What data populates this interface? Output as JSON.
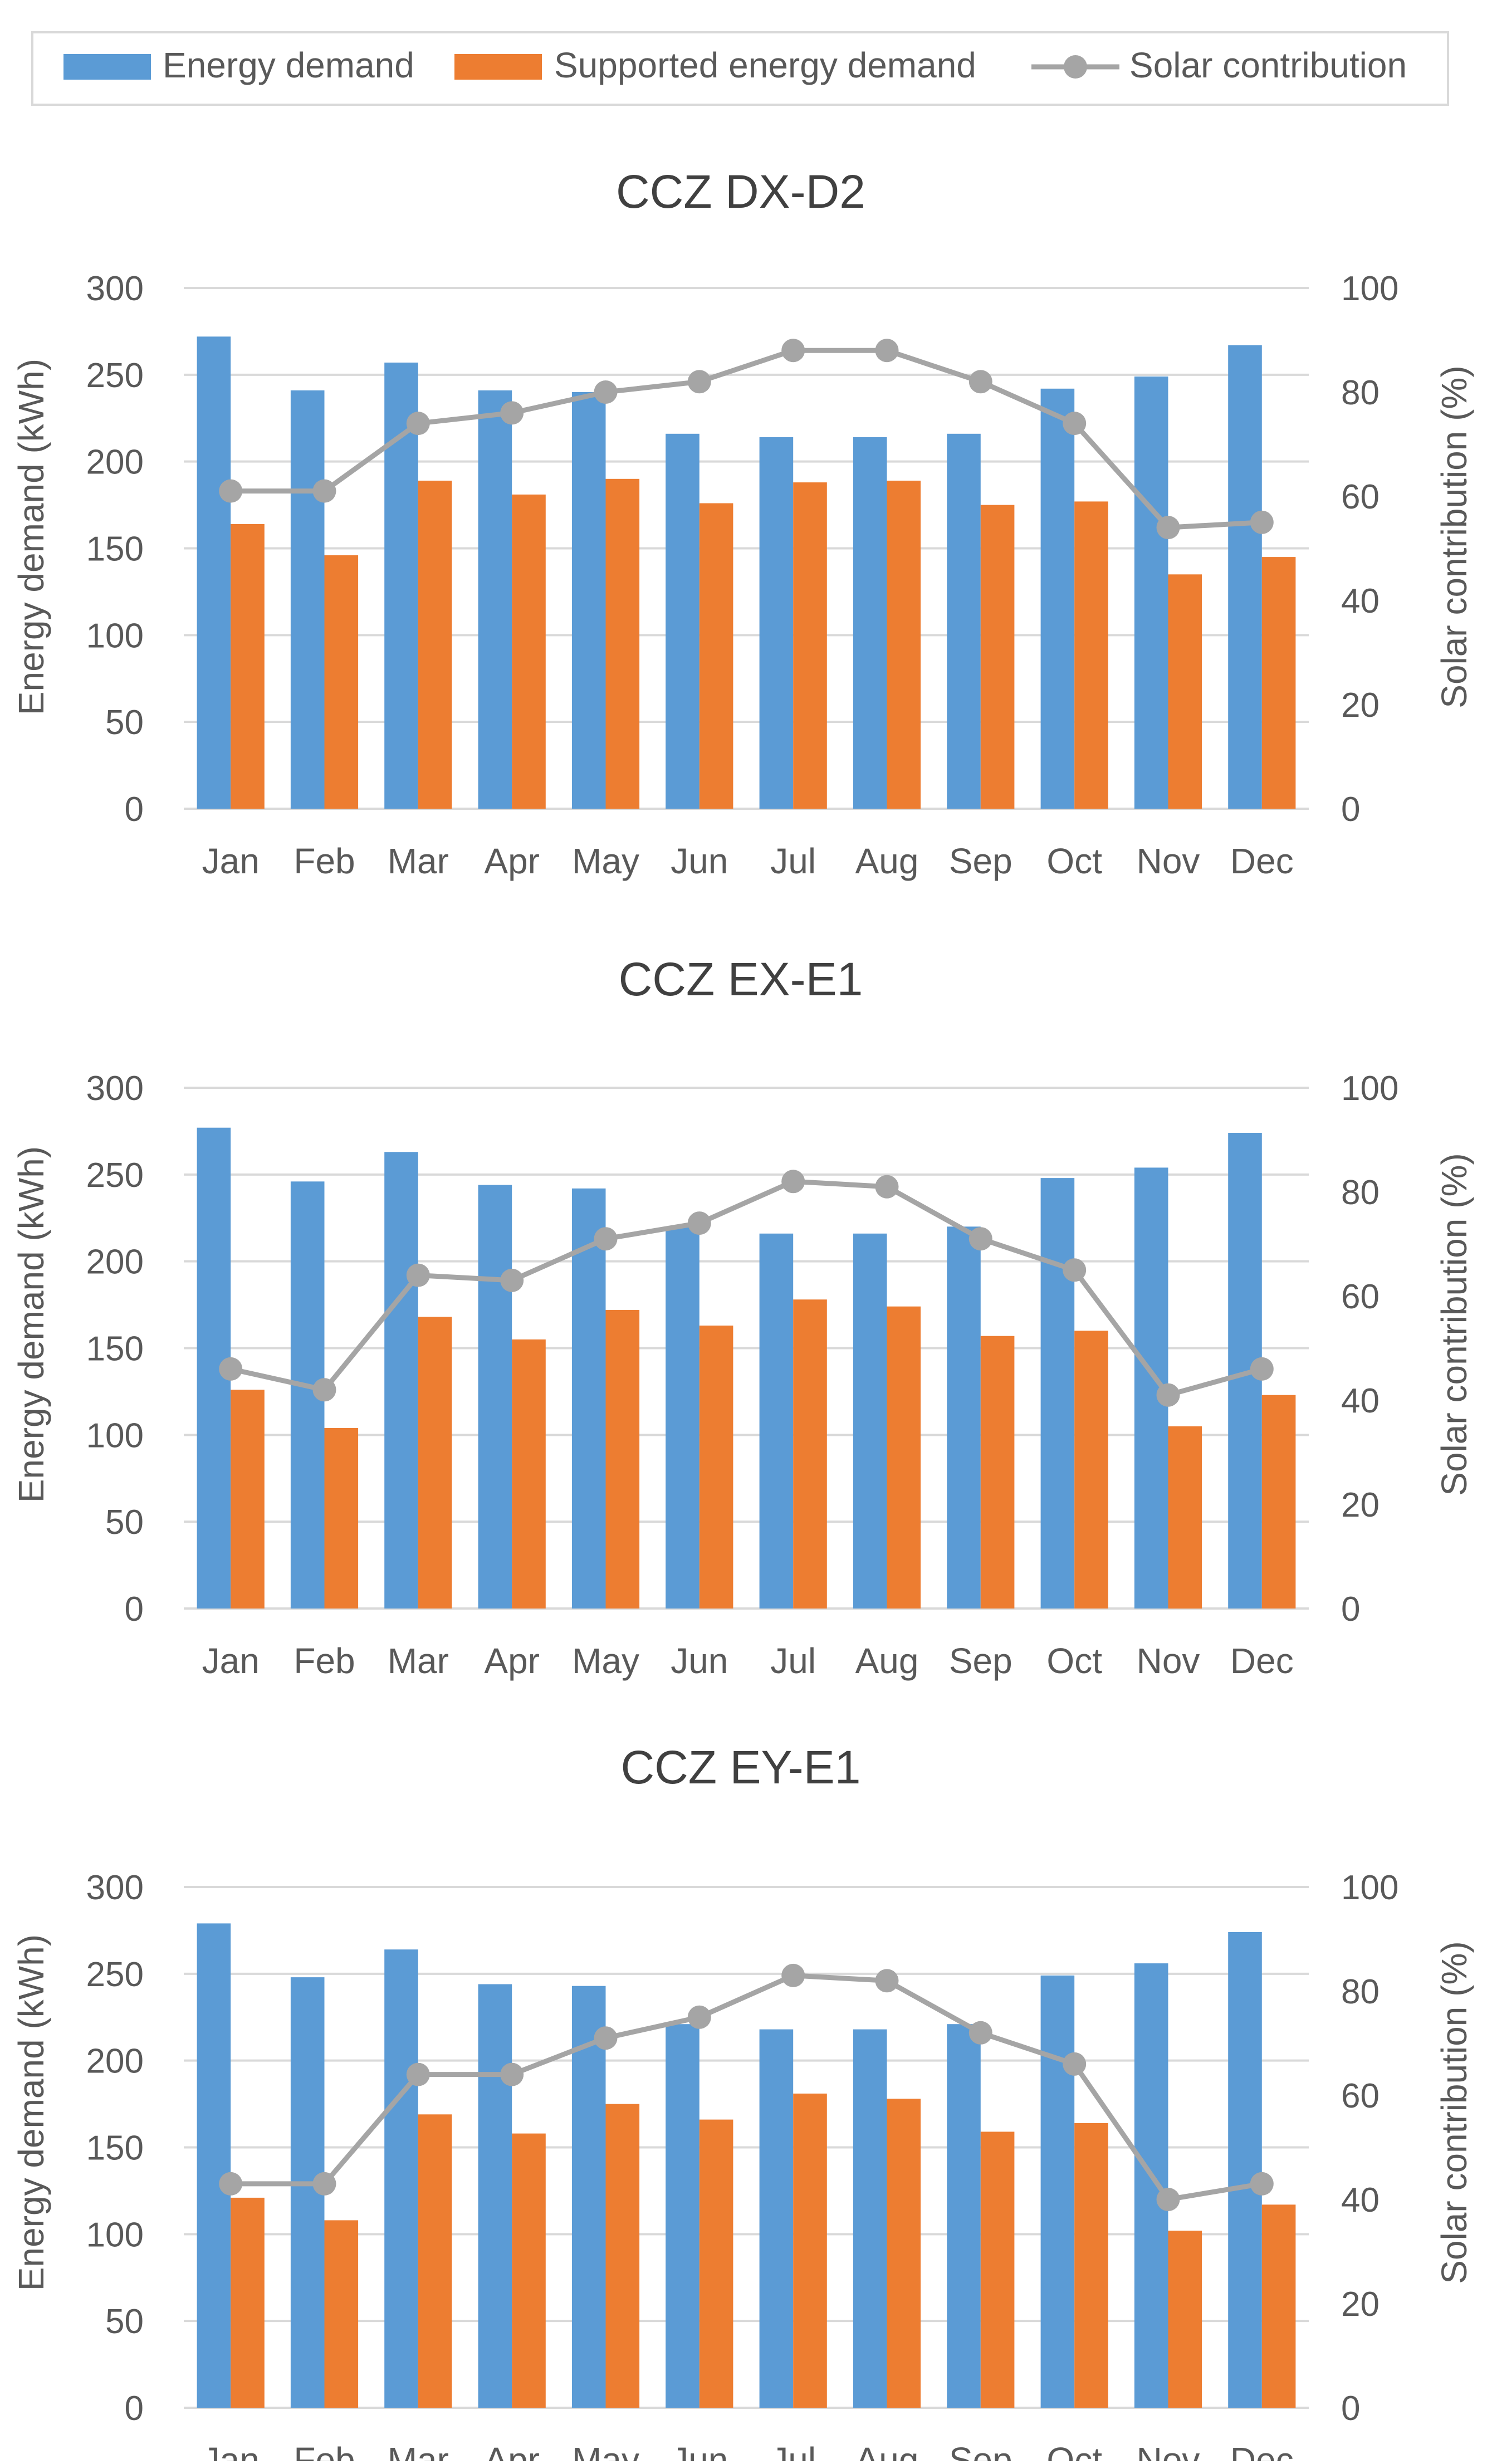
{
  "legend": {
    "items": [
      {
        "label": "Energy demand",
        "kind": "bar",
        "color": "#5B9BD5"
      },
      {
        "label": "Supported energy demand",
        "kind": "bar",
        "color": "#ED7D31"
      },
      {
        "label": "Solar contribution",
        "kind": "line",
        "color": "#A5A5A5"
      }
    ]
  },
  "chart_data": [
    {
      "type": "bar",
      "title": "CCZ DX-D2",
      "categories": [
        "Jan",
        "Feb",
        "Mar",
        "Apr",
        "May",
        "Jun",
        "Jul",
        "Aug",
        "Sep",
        "Oct",
        "Nov",
        "Dec"
      ],
      "ylabel": "Energy demand (kWh)",
      "y2label": "Solar contribution (%)",
      "ylim": [
        0,
        300
      ],
      "y2lim": [
        0,
        100
      ],
      "yticks": [
        "0",
        "50",
        "100",
        "150",
        "200",
        "250",
        "300"
      ],
      "y2ticks": [
        "0",
        "20",
        "40",
        "60",
        "80",
        "100"
      ],
      "grid": true,
      "series": [
        {
          "name": "Energy demand",
          "axis": "left",
          "type": "bar",
          "color": "#5B9BD5",
          "values": [
            272,
            241,
            257,
            241,
            240,
            216,
            214,
            214,
            216,
            242,
            249,
            267
          ]
        },
        {
          "name": "Supported energy demand",
          "axis": "left",
          "type": "bar",
          "color": "#ED7D31",
          "values": [
            164,
            146,
            189,
            181,
            190,
            176,
            188,
            189,
            175,
            177,
            135,
            145
          ]
        },
        {
          "name": "Solar contribution",
          "axis": "right",
          "type": "line",
          "color": "#A5A5A5",
          "values": [
            61,
            61,
            74,
            76,
            80,
            82,
            88,
            88,
            82,
            74,
            54,
            55
          ]
        }
      ]
    },
    {
      "type": "bar",
      "title": "CCZ EX-E1",
      "categories": [
        "Jan",
        "Feb",
        "Mar",
        "Apr",
        "May",
        "Jun",
        "Jul",
        "Aug",
        "Sep",
        "Oct",
        "Nov",
        "Dec"
      ],
      "ylabel": "Energy demand (kWh)",
      "y2label": "Solar contribution (%)",
      "ylim": [
        0,
        300
      ],
      "y2lim": [
        0,
        100
      ],
      "yticks": [
        "0",
        "50",
        "100",
        "150",
        "200",
        "250",
        "300"
      ],
      "y2ticks": [
        "0",
        "20",
        "40",
        "60",
        "80",
        "100"
      ],
      "grid": true,
      "series": [
        {
          "name": "Energy demand",
          "axis": "left",
          "type": "bar",
          "color": "#5B9BD5",
          "values": [
            277,
            246,
            263,
            244,
            242,
            220,
            216,
            216,
            220,
            248,
            254,
            274
          ]
        },
        {
          "name": "Supported energy demand",
          "axis": "left",
          "type": "bar",
          "color": "#ED7D31",
          "values": [
            126,
            104,
            168,
            155,
            172,
            163,
            178,
            174,
            157,
            160,
            105,
            123
          ]
        },
        {
          "name": "Solar contribution",
          "axis": "right",
          "type": "line",
          "color": "#A5A5A5",
          "values": [
            46,
            42,
            64,
            63,
            71,
            74,
            82,
            81,
            71,
            65,
            41,
            46
          ]
        }
      ]
    },
    {
      "type": "bar",
      "title": "CCZ EY-E1",
      "categories": [
        "Jan",
        "Feb",
        "Mar",
        "Apr",
        "May",
        "Jun",
        "Jul",
        "Aug",
        "Sep",
        "Oct",
        "Nov",
        "Dec"
      ],
      "ylabel": "Energy demand (kWh)",
      "y2label": "Solar contribution (%)",
      "ylim": [
        0,
        300
      ],
      "y2lim": [
        0,
        100
      ],
      "yticks": [
        "0",
        "50",
        "100",
        "150",
        "200",
        "250",
        "300"
      ],
      "y2ticks": [
        "0",
        "20",
        "40",
        "60",
        "80",
        "100"
      ],
      "grid": true,
      "series": [
        {
          "name": "Energy demand",
          "axis": "left",
          "type": "bar",
          "color": "#5B9BD5",
          "values": [
            279,
            248,
            264,
            244,
            243,
            221,
            218,
            218,
            221,
            249,
            256,
            274
          ]
        },
        {
          "name": "Supported energy demand",
          "axis": "left",
          "type": "bar",
          "color": "#ED7D31",
          "values": [
            121,
            108,
            169,
            158,
            175,
            166,
            181,
            178,
            159,
            164,
            102,
            117
          ]
        },
        {
          "name": "Solar contribution",
          "axis": "right",
          "type": "line",
          "color": "#A5A5A5",
          "values": [
            43,
            43,
            64,
            64,
            71,
            75,
            83,
            82,
            72,
            66,
            40,
            43
          ]
        }
      ]
    }
  ]
}
